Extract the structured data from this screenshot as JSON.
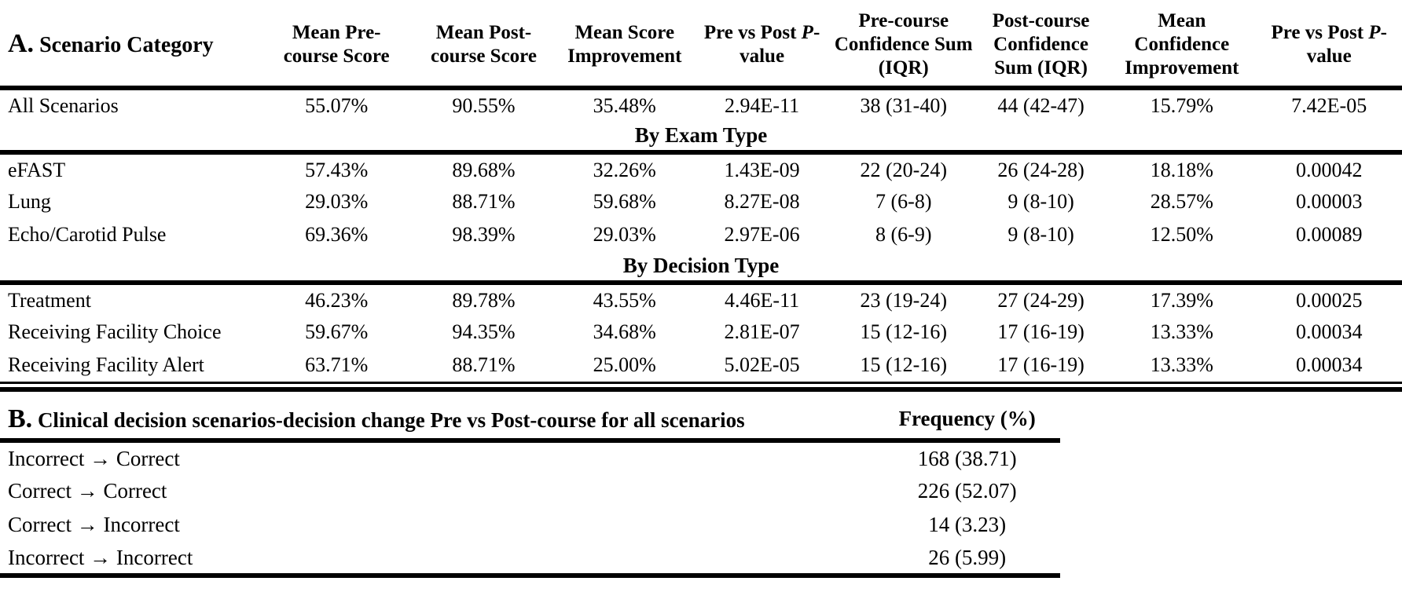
{
  "colors": {
    "text": "#000000",
    "background": "#ffffff",
    "rule": "#000000"
  },
  "table_a": {
    "label": "A.",
    "row_header": "Scenario Category",
    "columns": [
      {
        "text": "Mean Pre-course Score"
      },
      {
        "text": "Mean Post-course Score"
      },
      {
        "text": "Mean Score Improvement"
      },
      {
        "segments": [
          {
            "text": "Pre vs Post "
          },
          {
            "text": "P",
            "italic": true
          },
          {
            "text": "-value"
          }
        ]
      },
      {
        "text": "Pre-course Confidence Sum (IQR)"
      },
      {
        "text": "Post-course Confidence Sum (IQR)"
      },
      {
        "text": "Mean Confidence Improvement"
      },
      {
        "segments": [
          {
            "text": "Pre vs Post "
          },
          {
            "text": "P",
            "italic": true
          },
          {
            "text": "-value"
          }
        ]
      }
    ],
    "rows": [
      {
        "type": "data",
        "label": "All Scenarios",
        "values": [
          "55.07%",
          "90.55%",
          "35.48%",
          "2.94E-11",
          "38 (31-40)",
          "44 (42-47)",
          "15.79%",
          "7.42E-05"
        ]
      },
      {
        "type": "section",
        "label": "By Exam Type"
      },
      {
        "type": "data",
        "label": "eFAST",
        "values": [
          "57.43%",
          "89.68%",
          "32.26%",
          "1.43E-09",
          "22 (20-24)",
          "26 (24-28)",
          "18.18%",
          "0.00042"
        ]
      },
      {
        "type": "data",
        "label": "Lung",
        "values": [
          "29.03%",
          "88.71%",
          "59.68%",
          "8.27E-08",
          "7 (6-8)",
          "9 (8-10)",
          "28.57%",
          "0.00003"
        ]
      },
      {
        "type": "data",
        "label": "Echo/Carotid Pulse",
        "values": [
          "69.36%",
          "98.39%",
          "29.03%",
          "2.97E-06",
          "8 (6-9)",
          "9 (8-10)",
          "12.50%",
          "0.00089"
        ]
      },
      {
        "type": "section",
        "label": "By Decision Type"
      },
      {
        "type": "data",
        "label": "Treatment",
        "values": [
          "46.23%",
          "89.78%",
          "43.55%",
          "4.46E-11",
          "23 (19-24)",
          "27 (24-29)",
          "17.39%",
          "0.00025"
        ]
      },
      {
        "type": "data",
        "label": "Receiving Facility Choice",
        "values": [
          "59.67%",
          "94.35%",
          "34.68%",
          "2.81E-07",
          "15 (12-16)",
          "17 (16-19)",
          "13.33%",
          "0.00034"
        ]
      },
      {
        "type": "data",
        "label": "Receiving Facility Alert",
        "values": [
          "63.71%",
          "88.71%",
          "25.00%",
          "5.02E-05",
          "15 (12-16)",
          "17 (16-19)",
          "13.33%",
          "0.00034"
        ]
      }
    ]
  },
  "table_b": {
    "label": "B.",
    "title": "Clinical decision scenarios-decision change Pre vs Post-course for all scenarios",
    "frequency_header": "Frequency (%)",
    "rows": [
      {
        "label": "Incorrect → Correct",
        "value": "168 (38.71)"
      },
      {
        "label": "Correct → Correct",
        "value": "226 (52.07)"
      },
      {
        "label": "Correct → Incorrect",
        "value": "14 (3.23)"
      },
      {
        "label": "Incorrect → Incorrect",
        "value": "26 (5.99)"
      }
    ]
  }
}
